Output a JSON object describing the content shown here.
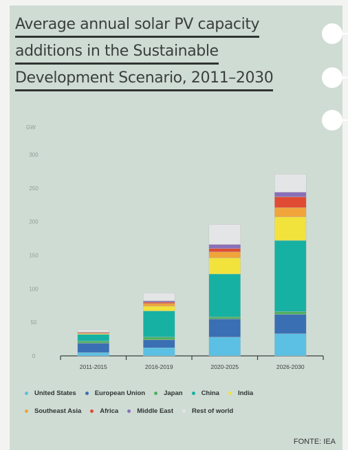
{
  "title_lines": [
    "Average annual solar PV capacity",
    "additions in the Sustainable",
    "Development Scenario, 2011–2030"
  ],
  "source": "FONTE: IEA",
  "chart_data": {
    "type": "bar",
    "stacked": true,
    "title": "Average annual solar PV capacity additions in the Sustainable Development Scenario, 2011–2030",
    "ylabel": "GW",
    "ylim": [
      0,
      300
    ],
    "yticks": [
      0,
      50,
      100,
      150,
      200,
      250,
      300
    ],
    "categories": [
      "2011-2015",
      "2016-2019",
      "2020-2025",
      "2026-2030"
    ],
    "series": [
      {
        "name": "United States",
        "color": "#5bc0e3",
        "values": [
          5,
          12,
          28,
          33
        ]
      },
      {
        "name": "European Union",
        "color": "#3a6fb3",
        "values": [
          14,
          12,
          27,
          29
        ]
      },
      {
        "name": "Japan",
        "color": "#4fb05c",
        "values": [
          3,
          4,
          3,
          4
        ]
      },
      {
        "name": "China",
        "color": "#17b1a3",
        "values": [
          10,
          39,
          64,
          106
        ]
      },
      {
        "name": "India",
        "color": "#f1e33c",
        "values": [
          1,
          7,
          24,
          35
        ]
      },
      {
        "name": "Southeast Asia",
        "color": "#f0a43a",
        "values": [
          1,
          4,
          9,
          14
        ]
      },
      {
        "name": "Africa",
        "color": "#e04c33",
        "values": [
          1,
          2,
          5,
          16
        ]
      },
      {
        "name": "Middle East",
        "color": "#8a6fb8",
        "values": [
          0.5,
          2,
          6,
          7
        ]
      },
      {
        "name": "Rest of world",
        "color": "#e4e5e6",
        "values": [
          3.5,
          12,
          30,
          27
        ]
      }
    ],
    "legend_position": "bottom",
    "grid": false
  }
}
